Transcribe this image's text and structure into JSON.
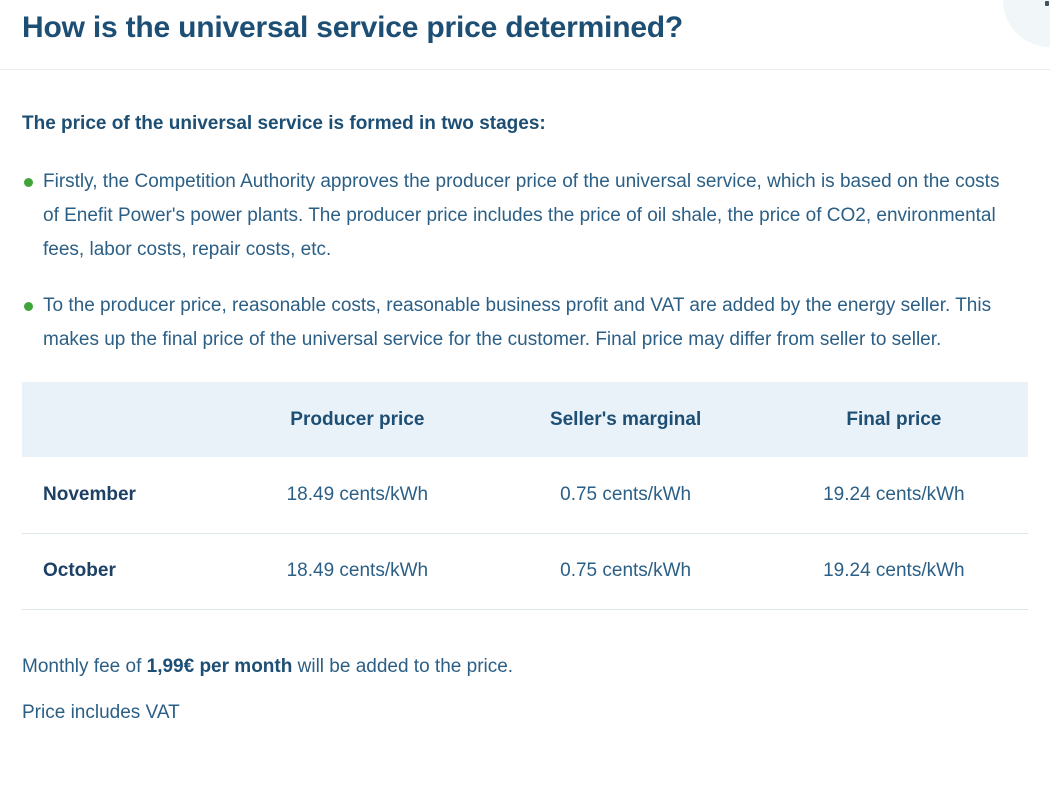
{
  "title": "How is the universal service price determined?",
  "intro": "The price of the universal service is formed in two stages:",
  "bullets": [
    "Firstly, the Competition Authority approves the producer price of the universal service, which is based on the costs of Enefit Power's power plants. The producer price includes the price of oil shale, the price of CO2, environmental fees, labor costs, repair costs, etc.",
    "To the producer price, reasonable costs, reasonable business profit and VAT are added by the energy seller. This makes up the final price of the universal service for the customer. Final price may differ from seller to seller."
  ],
  "table": {
    "columns": [
      "",
      "Producer price",
      "Seller's marginal",
      "Final price"
    ],
    "rows": [
      {
        "label": "November",
        "producer_price": "18.49 cents/kWh",
        "sellers_marginal": "0.75 cents/kWh",
        "final_price": "19.24 cents/kWh"
      },
      {
        "label": "October",
        "producer_price": "18.49 cents/kWh",
        "sellers_marginal": "0.75 cents/kWh",
        "final_price": "19.24 cents/kWh"
      }
    ]
  },
  "footer": {
    "monthly_fee_prefix": "Monthly fee of ",
    "monthly_fee_bold": "1,99€ per month",
    "monthly_fee_suffix": " will be added to the price.",
    "vat_note": "Price includes VAT"
  },
  "colors": {
    "title_navy": "#1d4e74",
    "body_blue": "#2b5f86",
    "row_label_navy": "#1d4065",
    "bullet_green": "#3fa53a",
    "table_header_bg": "#e9f1f9",
    "row_divider": "#dce8e8",
    "title_divider": "#ededed",
    "corner_circle": "#f1f6f9"
  }
}
